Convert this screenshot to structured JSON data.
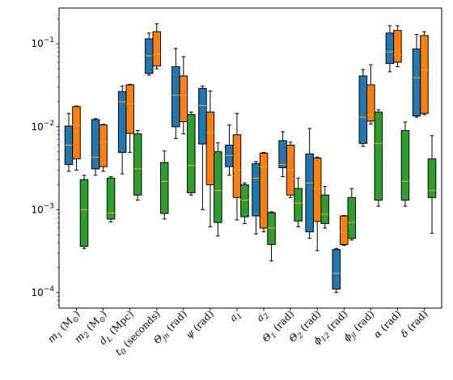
{
  "chart_data": {
    "type": "box",
    "yscale": "log",
    "ylim": [
      6.5e-05,
      0.27
    ],
    "yticks": [
      {
        "value": 0.0001,
        "base": "10",
        "exp": "−4"
      },
      {
        "value": 0.001,
        "base": "10",
        "exp": "−3"
      },
      {
        "value": 0.01,
        "base": "10",
        "exp": "−2"
      },
      {
        "value": 0.1,
        "base": "10",
        "exp": "−1"
      }
    ],
    "categories": [
      {
        "sym": "m",
        "sub": "1",
        "unit": " (M",
        "unitsub": "⊙",
        "close": ")"
      },
      {
        "sym": "m",
        "sub": "2",
        "unit": " (M",
        "unitsub": "⊙",
        "close": ")"
      },
      {
        "sym": "d",
        "sub": "L",
        "unit": " (Mpc)",
        "unitsub": "",
        "close": ""
      },
      {
        "sym": "t",
        "sub": "0",
        "unit": " (seconds)",
        "unitsub": "",
        "close": ""
      },
      {
        "sym": "Θ",
        "sub": "jn",
        "unit": " (rad)",
        "unitsub": "",
        "close": ""
      },
      {
        "sym": "ψ",
        "sub": "",
        "unit": " (rad)",
        "unitsub": "",
        "close": ""
      },
      {
        "sym": "a",
        "sub": "1",
        "unit": "",
        "unitsub": "",
        "close": ""
      },
      {
        "sym": "a",
        "sub": "2",
        "unit": "",
        "unitsub": "",
        "close": ""
      },
      {
        "sym": "Θ",
        "sub": "1",
        "unit": " (rad)",
        "unitsub": "",
        "close": ""
      },
      {
        "sym": "Θ",
        "sub": "2",
        "unit": " (rad)",
        "unitsub": "",
        "close": ""
      },
      {
        "sym": "ϕ",
        "sub": "12",
        "unit": " (rad)",
        "unitsub": "",
        "close": ""
      },
      {
        "sym": "ϕ",
        "sub": "jl",
        "unit": " (rad)",
        "unitsub": "",
        "close": ""
      },
      {
        "sym": "α",
        "sub": "",
        "unit": " (rad)",
        "unitsub": "",
        "close": ""
      },
      {
        "sym": "δ",
        "sub": "",
        "unit": " (rad)",
        "unitsub": "",
        "close": ""
      }
    ],
    "series": [
      {
        "color": "#1f77b4",
        "boxes": [
          [
            0.0029,
            0.0035,
            0.006,
            0.0102,
            0.0145
          ],
          [
            0.0026,
            0.0031,
            0.0043,
            0.0122,
            0.0125
          ],
          [
            0.0027,
            0.0049,
            0.02,
            0.0265,
            0.031
          ],
          [
            0.042,
            0.044,
            0.072,
            0.115,
            0.135
          ],
          [
            0.0072,
            0.01,
            0.024,
            0.053,
            0.088
          ],
          [
            0.001,
            0.0062,
            0.018,
            0.029,
            0.031
          ],
          [
            0.0026,
            0.0033,
            0.0045,
            0.006,
            0.0105
          ],
          [
            0.00051,
            0.00084,
            0.0024,
            0.0036,
            0.0038
          ],
          [
            0.0025,
            0.0032,
            0.0035,
            0.0068,
            0.0087
          ],
          [
            0.00045,
            0.00054,
            0.0021,
            0.0047,
            0.0095
          ],
          [
            0.0001,
            0.00011,
            0.00017,
            0.00033,
            0.00034
          ],
          [
            0.0058,
            0.0063,
            0.013,
            0.041,
            0.049
          ],
          [
            0.046,
            0.058,
            0.08,
            0.135,
            0.165
          ],
          [
            0.013,
            0.0135,
            0.039,
            0.087,
            0.13
          ]
        ]
      },
      {
        "color": "#ff7f0e",
        "boxes": [
          [
            0.003,
            0.0041,
            0.0105,
            0.0175,
            0.0178
          ],
          [
            0.0029,
            0.0033,
            0.0065,
            0.0105,
            0.0107
          ],
          [
            0.0049,
            0.0083,
            0.019,
            0.032,
            0.0325
          ],
          [
            0.05,
            0.054,
            0.075,
            0.14,
            0.175
          ],
          [
            0.0082,
            0.0115,
            0.024,
            0.041,
            0.07
          ],
          [
            0.00062,
            0.002,
            0.0085,
            0.015,
            0.027
          ],
          [
            0.00075,
            0.0014,
            0.003,
            0.008,
            0.0145
          ],
          [
            0.00054,
            0.0006,
            0.0033,
            0.0048,
            0.0049
          ],
          [
            0.0014,
            0.0015,
            0.003,
            0.006,
            0.0065
          ],
          [
            0.00032,
            0.00072,
            0.0018,
            0.0042,
            0.0043
          ],
          [
            0.00037,
            0.00038,
            0.00053,
            0.00084,
            0.00085
          ],
          [
            0.0108,
            0.0117,
            0.014,
            0.032,
            0.056
          ],
          [
            0.053,
            0.06,
            0.074,
            0.145,
            0.165
          ],
          [
            0.014,
            0.0145,
            0.048,
            0.126,
            0.14
          ]
        ]
      },
      {
        "color": "#2ca02c",
        "boxes": [
          [
            0.00034,
            0.00036,
            0.001,
            0.0023,
            0.0026
          ],
          [
            0.00071,
            0.00077,
            0.00091,
            0.0024,
            0.0025
          ],
          [
            0.0013,
            0.0015,
            0.0031,
            0.0082,
            0.009
          ],
          [
            0.00077,
            0.0009,
            0.0022,
            0.0037,
            0.0051
          ],
          [
            0.0015,
            0.0016,
            0.0034,
            0.014,
            0.015
          ],
          [
            0.00048,
            0.0007,
            0.0017,
            0.005,
            0.0064
          ],
          [
            0.00068,
            0.00082,
            0.0013,
            0.002,
            0.0021
          ],
          [
            0.00024,
            0.00038,
            0.0006,
            0.00092,
            0.00094
          ],
          [
            0.00062,
            0.00073,
            0.0012,
            0.0018,
            0.0024
          ],
          [
            0.0006,
            0.00068,
            0.00088,
            0.0015,
            0.0019
          ],
          [
            0.00043,
            0.00045,
            0.0007,
            0.0014,
            0.0018
          ],
          [
            0.0011,
            0.0013,
            0.0063,
            0.015,
            0.016
          ],
          [
            0.0011,
            0.0013,
            0.0022,
            0.009,
            0.0114
          ],
          [
            0.00052,
            0.0014,
            0.0017,
            0.0041,
            0.0078
          ]
        ]
      }
    ],
    "median_color": "#ffb000",
    "grid": false,
    "legend": "none"
  }
}
